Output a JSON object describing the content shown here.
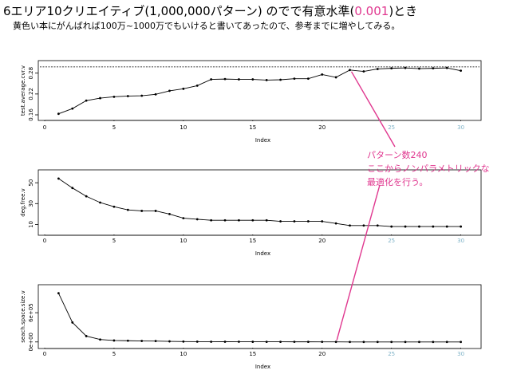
{
  "slide": {
    "title_pre": "6エリア10クリエイティブ(1,000,000パターン) のでで有意水準(",
    "title_hl": "0.001",
    "title_post": ")とき",
    "subtitle": "黄色い本にがんばれば100万~1000万でもいけると書いてあったので、参考までに増やしてみる。",
    "annotation": [
      "パターン数240",
      "ここからノンパラメトリックな",
      "最適化を行う。"
    ],
    "accent_color": "#e0378f"
  },
  "chart_data": [
    {
      "type": "line",
      "ylabel": "test.average.cvr.v",
      "xlabel": "Index",
      "x_ticks": [
        0,
        5,
        10,
        15,
        20,
        25,
        30
      ],
      "y_ticks": [
        0.16,
        0.22,
        0.28
      ],
      "xlim": [
        0,
        31
      ],
      "ylim": [
        0.16,
        0.3
      ],
      "reference_line": 0.298,
      "x": [
        1,
        2,
        3,
        4,
        5,
        6,
        7,
        8,
        9,
        10,
        11,
        12,
        13,
        14,
        15,
        16,
        17,
        18,
        19,
        20,
        21,
        22,
        23,
        24,
        25,
        26,
        27,
        28,
        29,
        30
      ],
      "values": [
        0.163,
        0.178,
        0.201,
        0.208,
        0.212,
        0.214,
        0.215,
        0.219,
        0.229,
        0.235,
        0.244,
        0.262,
        0.263,
        0.262,
        0.262,
        0.26,
        0.261,
        0.264,
        0.264,
        0.276,
        0.268,
        0.289,
        0.285,
        0.292,
        0.294,
        0.295,
        0.293,
        0.294,
        0.295,
        0.287
      ]
    },
    {
      "type": "line",
      "ylabel": "deg.free.v",
      "xlabel": "Index",
      "x_ticks": [
        0,
        5,
        10,
        15,
        20,
        25,
        30
      ],
      "y_ticks": [
        10,
        30,
        50
      ],
      "xlim": [
        0,
        31
      ],
      "ylim": [
        5,
        57
      ],
      "x": [
        1,
        2,
        3,
        4,
        5,
        6,
        7,
        8,
        9,
        10,
        11,
        12,
        13,
        14,
        15,
        16,
        17,
        18,
        19,
        20,
        21,
        22,
        23,
        24,
        25,
        26,
        27,
        28,
        29,
        30
      ],
      "values": [
        54,
        45,
        37,
        31,
        27,
        24,
        23,
        23,
        20,
        16,
        15,
        14,
        14,
        14,
        14,
        14,
        13,
        13,
        13,
        13,
        11,
        9,
        9,
        9,
        8,
        8,
        8,
        8,
        8,
        8
      ]
    },
    {
      "type": "line",
      "ylabel": "seach.space.size.v",
      "xlabel": "Index",
      "x_ticks": [
        0,
        5,
        10,
        15,
        20,
        25,
        30
      ],
      "y_ticks": [
        "0e+00",
        "6e+05"
      ],
      "y_tick_values": [
        0,
        600000
      ],
      "xlim": [
        0,
        31
      ],
      "ylim": [
        -20000,
        1060000
      ],
      "x": [
        1,
        2,
        3,
        4,
        5,
        6,
        7,
        8,
        9,
        10,
        11,
        12,
        13,
        14,
        15,
        16,
        17,
        18,
        19,
        20,
        21,
        22,
        23,
        24,
        25,
        26,
        27,
        28,
        29,
        30
      ],
      "values": [
        1000000,
        400000,
        120000,
        50000,
        30000,
        25000,
        20000,
        18000,
        12000,
        8000,
        6000,
        5000,
        4500,
        4000,
        3500,
        3000,
        2800,
        2500,
        2300,
        2000,
        1500,
        240,
        240,
        240,
        240,
        240,
        240,
        240,
        240,
        240
      ]
    }
  ]
}
